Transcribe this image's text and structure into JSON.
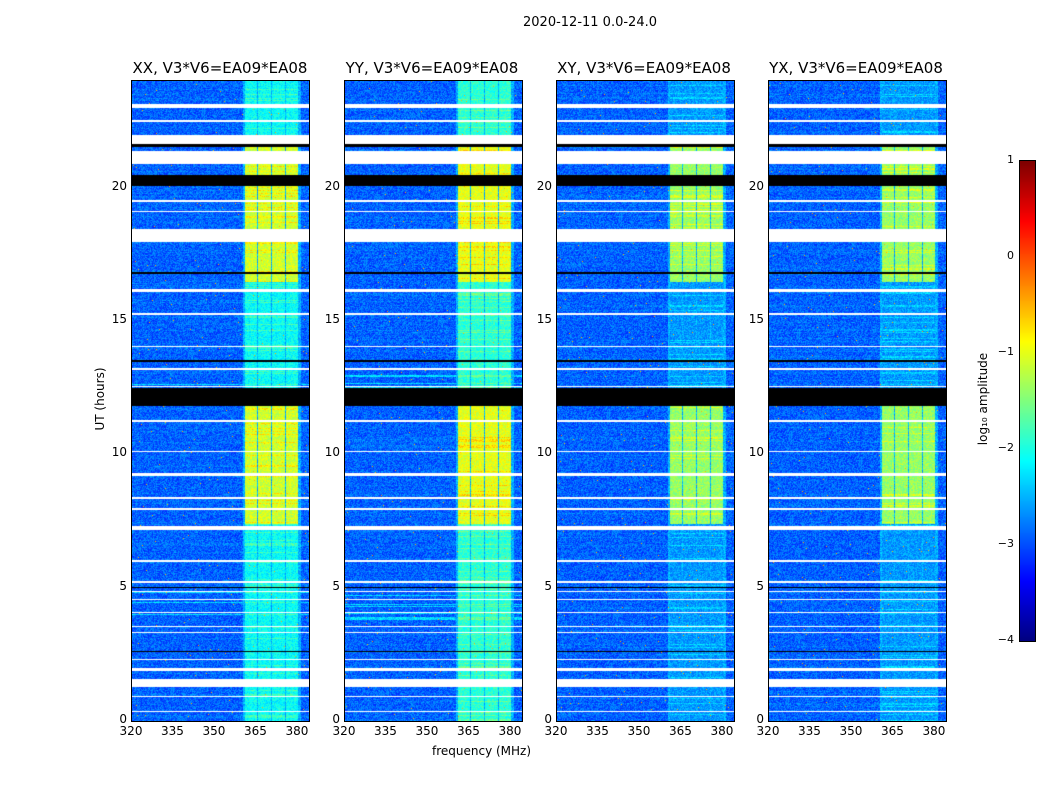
{
  "chart_data": {
    "type": "heatmap",
    "title": "2020-12-11 0.0-24.0",
    "xlabel": "frequency (MHz)",
    "ylabel": "UT (hours)",
    "xlim": [
      320,
      384
    ],
    "ylim": [
      0,
      24
    ],
    "xticks": [
      "320",
      "335",
      "350",
      "365",
      "380"
    ],
    "yticks": [
      "0",
      "5",
      "10",
      "15",
      "20"
    ],
    "panels": [
      {
        "title": "XX, V3*V6=EA09*EA08",
        "strength": 1.0
      },
      {
        "title": "YY, V3*V6=EA09*EA08",
        "strength": 1.1
      },
      {
        "title": "XY, V3*V6=EA09*EA08",
        "strength": 0.8
      },
      {
        "title": "YX, V3*V6=EA09*EA08",
        "strength": 0.8
      }
    ],
    "background_log10": -2.9,
    "rfi_bands_mhz": [
      [
        360.5,
        365
      ],
      [
        365.5,
        370
      ],
      [
        370.5,
        375
      ],
      [
        375.5,
        380
      ]
    ],
    "strong_rfi_hours": [
      [
        7.4,
        11.9
      ],
      [
        16.5,
        21.6
      ]
    ],
    "flagged_hours_white": [
      [
        0.35,
        0.4
      ],
      [
        0.9,
        0.95
      ],
      [
        1.3,
        1.6
      ],
      [
        1.9,
        2.0
      ],
      [
        2.3,
        2.35
      ],
      [
        3.3,
        3.35
      ],
      [
        3.55,
        3.6
      ],
      [
        4.05,
        4.1
      ],
      [
        4.55,
        4.6
      ],
      [
        4.85,
        4.9
      ],
      [
        5.2,
        5.25
      ],
      [
        6.0,
        6.05
      ],
      [
        7.2,
        7.35
      ],
      [
        7.95,
        8.0
      ],
      [
        8.35,
        8.4
      ],
      [
        9.2,
        9.3
      ],
      [
        10.1,
        10.15
      ],
      [
        11.25,
        11.3
      ],
      [
        12.55,
        12.6
      ],
      [
        13.2,
        13.25
      ],
      [
        14.05,
        14.1
      ],
      [
        15.25,
        15.3
      ],
      [
        16.1,
        16.2
      ],
      [
        18.0,
        18.45
      ],
      [
        19.1,
        19.15
      ],
      [
        19.5,
        19.55
      ],
      [
        20.9,
        21.4
      ],
      [
        21.65,
        22.0
      ],
      [
        22.5,
        22.55
      ],
      [
        23.0,
        23.15
      ]
    ],
    "flagged_hours_black": [
      [
        11.85,
        12.5
      ],
      [
        20.1,
        20.5
      ],
      [
        21.55,
        21.65
      ],
      [
        13.5,
        13.55
      ],
      [
        16.8,
        16.85
      ],
      [
        5.0,
        5.05
      ],
      [
        2.6,
        2.65
      ]
    ],
    "colorbar": {
      "label": "log₁₀ amplitude",
      "min": -4,
      "max": 1,
      "ticks": [
        "1",
        "0",
        "−1",
        "−2",
        "−3",
        "−4"
      ],
      "colormap": "jet"
    }
  }
}
